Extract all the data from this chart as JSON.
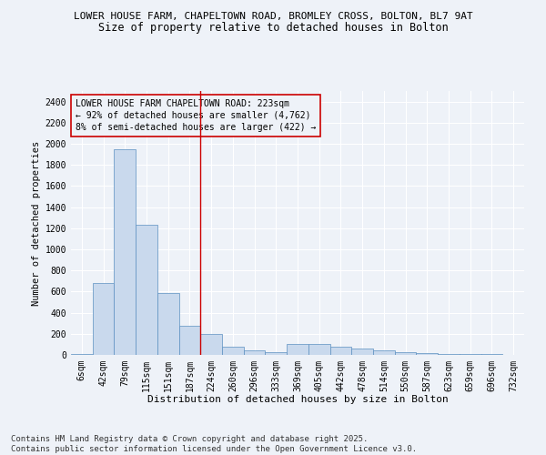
{
  "title1": "LOWER HOUSE FARM, CHAPELTOWN ROAD, BROMLEY CROSS, BOLTON, BL7 9AT",
  "title2": "Size of property relative to detached houses in Bolton",
  "xlabel": "Distribution of detached houses by size in Bolton",
  "ylabel": "Number of detached properties",
  "categories": [
    "6sqm",
    "42sqm",
    "79sqm",
    "115sqm",
    "151sqm",
    "187sqm",
    "224sqm",
    "260sqm",
    "296sqm",
    "333sqm",
    "369sqm",
    "405sqm",
    "442sqm",
    "478sqm",
    "514sqm",
    "550sqm",
    "587sqm",
    "623sqm",
    "659sqm",
    "696sqm",
    "732sqm"
  ],
  "values": [
    10,
    680,
    1950,
    1230,
    590,
    280,
    200,
    80,
    40,
    30,
    100,
    100,
    80,
    60,
    40,
    30,
    20,
    10,
    5,
    5,
    2
  ],
  "bar_color": "#c9d9ed",
  "bar_edge_color": "#5b8fc0",
  "vline_x": 5.5,
  "vline_color": "#cc0000",
  "annotation_text": "LOWER HOUSE FARM CHAPELTOWN ROAD: 223sqm\n← 92% of detached houses are smaller (4,762)\n8% of semi-detached houses are larger (422) →",
  "annotation_box_color": "#cc0000",
  "ylim": [
    0,
    2500
  ],
  "yticks": [
    0,
    200,
    400,
    600,
    800,
    1000,
    1200,
    1400,
    1600,
    1800,
    2000,
    2200,
    2400
  ],
  "bg_color": "#eef2f8",
  "grid_color": "#ffffff",
  "footer_text": "Contains HM Land Registry data © Crown copyright and database right 2025.\nContains public sector information licensed under the Open Government Licence v3.0.",
  "title1_fontsize": 8.0,
  "title2_fontsize": 8.5,
  "xlabel_fontsize": 8.0,
  "ylabel_fontsize": 7.5,
  "tick_fontsize": 7.0,
  "annotation_fontsize": 7.0,
  "footer_fontsize": 6.5
}
